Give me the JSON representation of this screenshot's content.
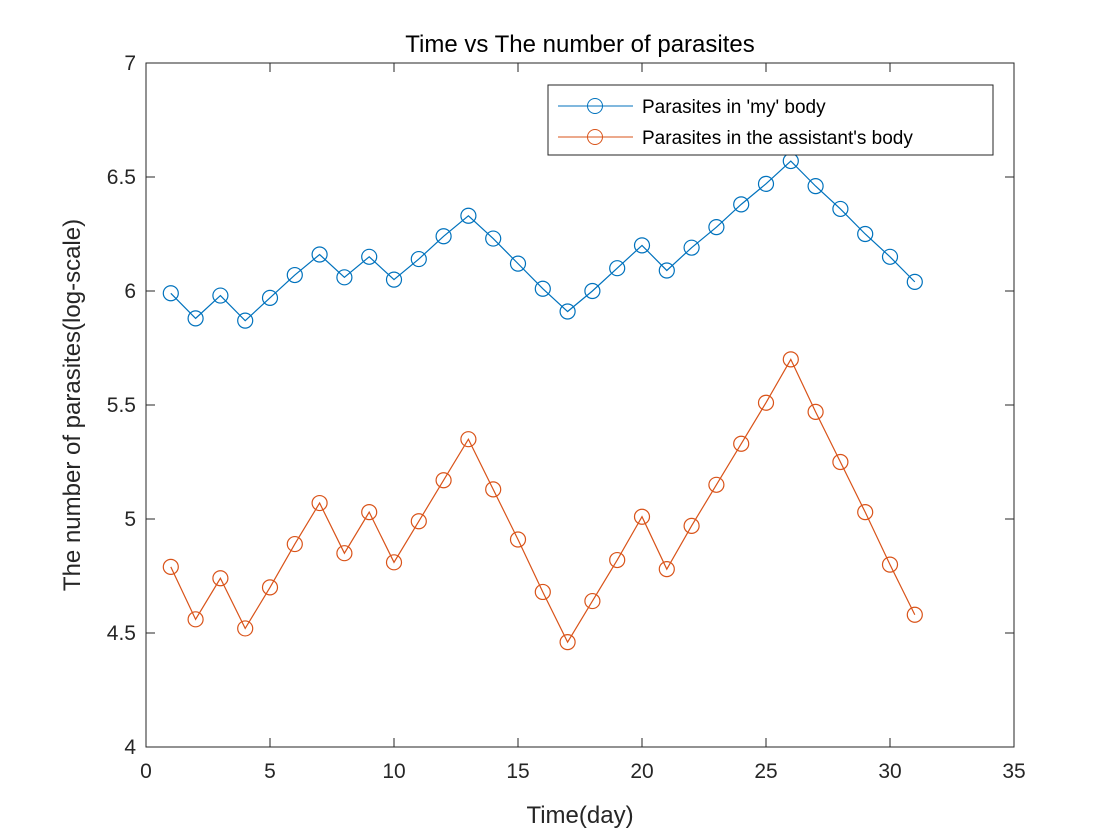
{
  "chart_data": {
    "type": "line",
    "title": "Time vs The number of parasites",
    "xlabel": "Time(day)",
    "ylabel": "The number of parasites(log-scale)",
    "xlim": [
      0,
      35
    ],
    "ylim": [
      4,
      7
    ],
    "xticks": [
      0,
      5,
      10,
      15,
      20,
      25,
      30,
      35
    ],
    "yticks": [
      4,
      4.5,
      5,
      5.5,
      6,
      6.5,
      7
    ],
    "grid": false,
    "legend_position": "top-right",
    "marker": "circle",
    "x": [
      1,
      2,
      3,
      4,
      5,
      6,
      7,
      8,
      9,
      10,
      11,
      12,
      13,
      14,
      15,
      16,
      17,
      18,
      19,
      20,
      21,
      22,
      23,
      24,
      25,
      26,
      27,
      28,
      29,
      30,
      31
    ],
    "series": [
      {
        "name": "Parasites in 'my' body",
        "color": "#0072BD",
        "values": [
          5.99,
          5.88,
          5.98,
          5.87,
          5.97,
          6.07,
          6.16,
          6.06,
          6.15,
          6.05,
          6.14,
          6.24,
          6.33,
          6.23,
          6.12,
          6.01,
          5.91,
          6.0,
          6.1,
          6.2,
          6.09,
          6.19,
          6.28,
          6.38,
          6.47,
          6.57,
          6.46,
          6.36,
          6.25,
          6.15,
          6.04
        ]
      },
      {
        "name": "Parasites in the assistant's body",
        "color": "#D95319",
        "values": [
          4.79,
          4.56,
          4.74,
          4.52,
          4.7,
          4.89,
          5.07,
          4.85,
          5.03,
          4.81,
          4.99,
          5.17,
          5.35,
          5.13,
          4.91,
          4.68,
          4.46,
          4.64,
          4.82,
          5.01,
          4.78,
          4.97,
          5.15,
          5.33,
          5.51,
          5.7,
          5.47,
          5.25,
          5.03,
          4.8,
          4.58
        ]
      }
    ]
  }
}
